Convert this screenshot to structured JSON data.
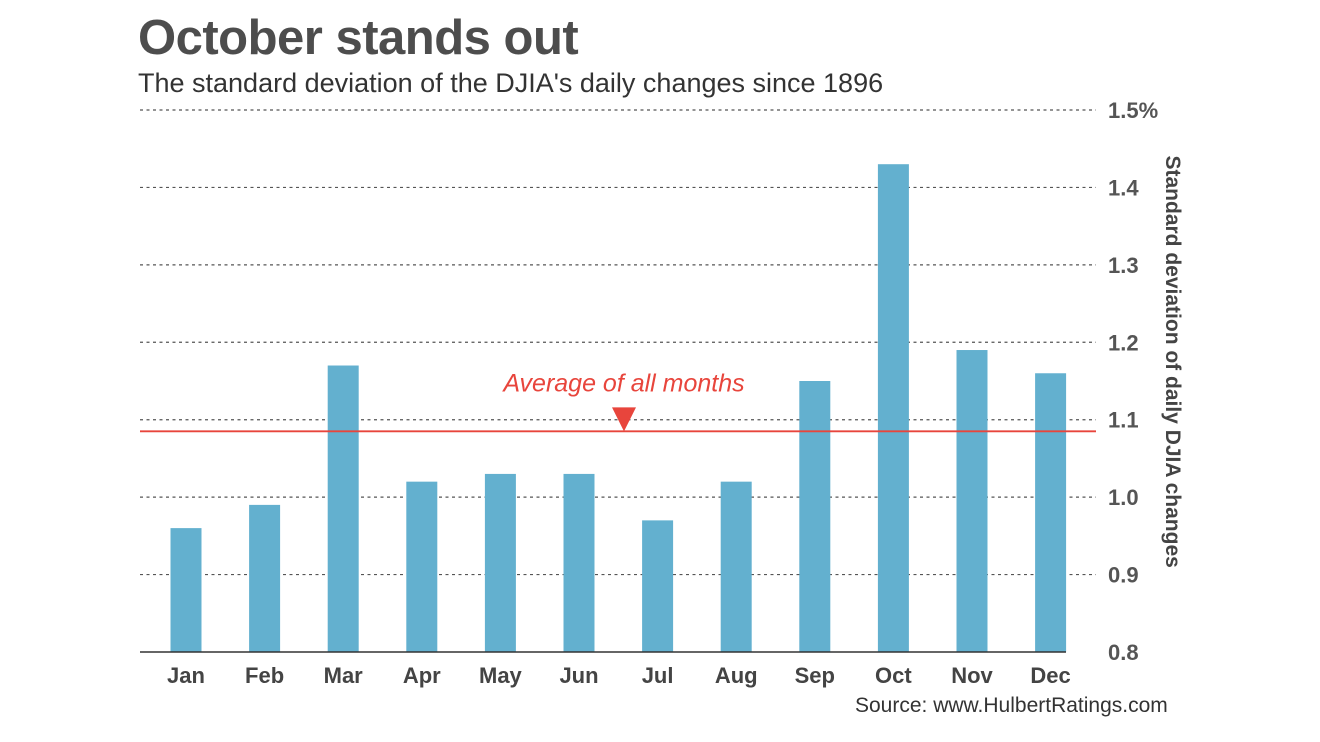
{
  "chart_data": {
    "type": "bar",
    "title": "October stands out",
    "subtitle": "The standard deviation of the DJIA's daily changes since 1896",
    "ylabel": "Standard deviation of daily DJIA changes",
    "xlabel": "",
    "source": "Source: www.HulbertRatings.com",
    "categories": [
      "Jan",
      "Feb",
      "Mar",
      "Apr",
      "May",
      "Jun",
      "Jul",
      "Aug",
      "Sep",
      "Oct",
      "Nov",
      "Dec"
    ],
    "values": [
      0.96,
      0.99,
      1.17,
      1.02,
      1.03,
      1.03,
      0.97,
      1.02,
      1.15,
      1.43,
      1.19,
      1.16
    ],
    "ylim": [
      0.8,
      1.5
    ],
    "yticks": [
      {
        "value": 0.8,
        "label": "0.8"
      },
      {
        "value": 0.9,
        "label": "0.9"
      },
      {
        "value": 1.0,
        "label": "1.0"
      },
      {
        "value": 1.1,
        "label": "1.1"
      },
      {
        "value": 1.2,
        "label": "1.2"
      },
      {
        "value": 1.3,
        "label": "1.3"
      },
      {
        "value": 1.4,
        "label": "1.4"
      },
      {
        "value": 1.5,
        "label": "1.5%"
      }
    ],
    "y_axis_side": "right",
    "grid": true,
    "reference_line": {
      "value": 1.085,
      "label": "Average of all months",
      "color": "#e8453c"
    },
    "bar_color": "#63b0cf"
  }
}
